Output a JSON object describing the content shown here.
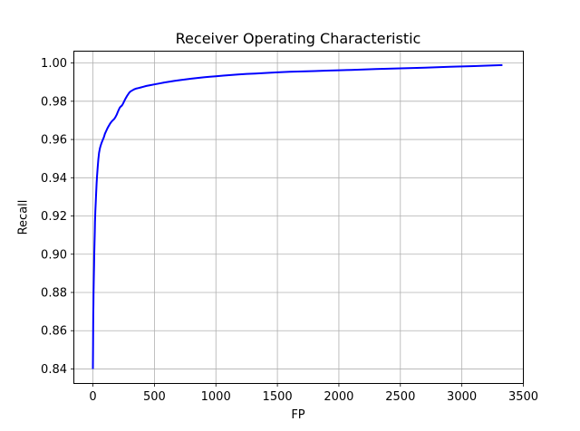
{
  "figure": {
    "background": "#ffffff",
    "plot_background": "#ffffff",
    "spine_color": "#000000",
    "tick_color": "#000000",
    "text_color": "#000000"
  },
  "chart_data": {
    "type": "line",
    "title": "Receiver Operating Characteristic",
    "xlabel": "FP",
    "ylabel": "Recall",
    "xlim": [
      -155,
      3500
    ],
    "ylim": [
      0.8324,
      1.0062
    ],
    "grid": true,
    "grid_color": "#b0b0b0",
    "legend": null,
    "xtick_values": [
      0,
      500,
      1000,
      1500,
      2000,
      2500,
      3000,
      3500
    ],
    "xtick_labels": [
      "0",
      "500",
      "1000",
      "1500",
      "2000",
      "2500",
      "3000",
      "3500"
    ],
    "ytick_values": [
      0.84,
      0.86,
      0.88,
      0.9,
      0.92,
      0.94,
      0.96,
      0.98,
      1.0
    ],
    "ytick_labels": [
      "0.84",
      "0.86",
      "0.88",
      "0.90",
      "0.92",
      "0.94",
      "0.96",
      "0.98",
      "1.00"
    ],
    "series": [
      {
        "name": "roc-curve",
        "color": "#0000ff",
        "line_width": 2,
        "points": [
          [
            0,
            0.84
          ],
          [
            1,
            0.8525
          ],
          [
            2,
            0.861
          ],
          [
            3,
            0.868
          ],
          [
            4,
            0.874
          ],
          [
            5,
            0.879
          ],
          [
            7,
            0.887
          ],
          [
            9,
            0.894
          ],
          [
            11,
            0.9
          ],
          [
            13,
            0.906
          ],
          [
            15,
            0.9115
          ],
          [
            17,
            0.9165
          ],
          [
            20,
            0.9225
          ],
          [
            23,
            0.9275
          ],
          [
            26,
            0.932
          ],
          [
            30,
            0.937
          ],
          [
            34,
            0.941
          ],
          [
            39,
            0.9455
          ],
          [
            44,
            0.9495
          ],
          [
            50,
            0.953
          ],
          [
            57,
            0.9555
          ],
          [
            64,
            0.957
          ],
          [
            72,
            0.9585
          ],
          [
            80,
            0.9598
          ],
          [
            88,
            0.961
          ],
          [
            98,
            0.963
          ],
          [
            108,
            0.9645
          ],
          [
            118,
            0.9658
          ],
          [
            128,
            0.967
          ],
          [
            140,
            0.9683
          ],
          [
            152,
            0.9694
          ],
          [
            163,
            0.9701
          ],
          [
            174,
            0.9708
          ],
          [
            184,
            0.9718
          ],
          [
            194,
            0.9731
          ],
          [
            203,
            0.9745
          ],
          [
            211,
            0.9757
          ],
          [
            218,
            0.9766
          ],
          [
            226,
            0.9772
          ],
          [
            235,
            0.9777
          ],
          [
            243,
            0.9785
          ],
          [
            250,
            0.9795
          ],
          [
            258,
            0.9805
          ],
          [
            267,
            0.9816
          ],
          [
            277,
            0.9827
          ],
          [
            287,
            0.9837
          ],
          [
            297,
            0.9846
          ],
          [
            308,
            0.9852
          ],
          [
            320,
            0.9857
          ],
          [
            334,
            0.9862
          ],
          [
            350,
            0.9866
          ],
          [
            368,
            0.9869
          ],
          [
            388,
            0.9872
          ],
          [
            410,
            0.9876
          ],
          [
            435,
            0.988
          ],
          [
            465,
            0.9884
          ],
          [
            500,
            0.9888
          ],
          [
            540,
            0.9893
          ],
          [
            580,
            0.9898
          ],
          [
            620,
            0.9902
          ],
          [
            660,
            0.9906
          ],
          [
            700,
            0.991
          ],
          [
            750,
            0.9914
          ],
          [
            800,
            0.9918
          ],
          [
            850,
            0.9922
          ],
          [
            900,
            0.9925
          ],
          [
            950,
            0.9928
          ],
          [
            1000,
            0.9931
          ],
          [
            1060,
            0.9934
          ],
          [
            1120,
            0.9937
          ],
          [
            1180,
            0.994
          ],
          [
            1250,
            0.9943
          ],
          [
            1320,
            0.9945
          ],
          [
            1400,
            0.9948
          ],
          [
            1500,
            0.9951
          ],
          [
            1600,
            0.9954
          ],
          [
            1700,
            0.9956
          ],
          [
            1800,
            0.9958
          ],
          [
            1900,
            0.996
          ],
          [
            2000,
            0.9962
          ],
          [
            2100,
            0.9964
          ],
          [
            2200,
            0.9966
          ],
          [
            2300,
            0.9968
          ],
          [
            2400,
            0.997
          ],
          [
            2500,
            0.9972
          ],
          [
            2600,
            0.9974
          ],
          [
            2700,
            0.9976
          ],
          [
            2800,
            0.9978
          ],
          [
            2900,
            0.998
          ],
          [
            3000,
            0.9982
          ],
          [
            3100,
            0.9984
          ],
          [
            3200,
            0.9986
          ],
          [
            3330,
            0.9989
          ]
        ]
      }
    ]
  }
}
